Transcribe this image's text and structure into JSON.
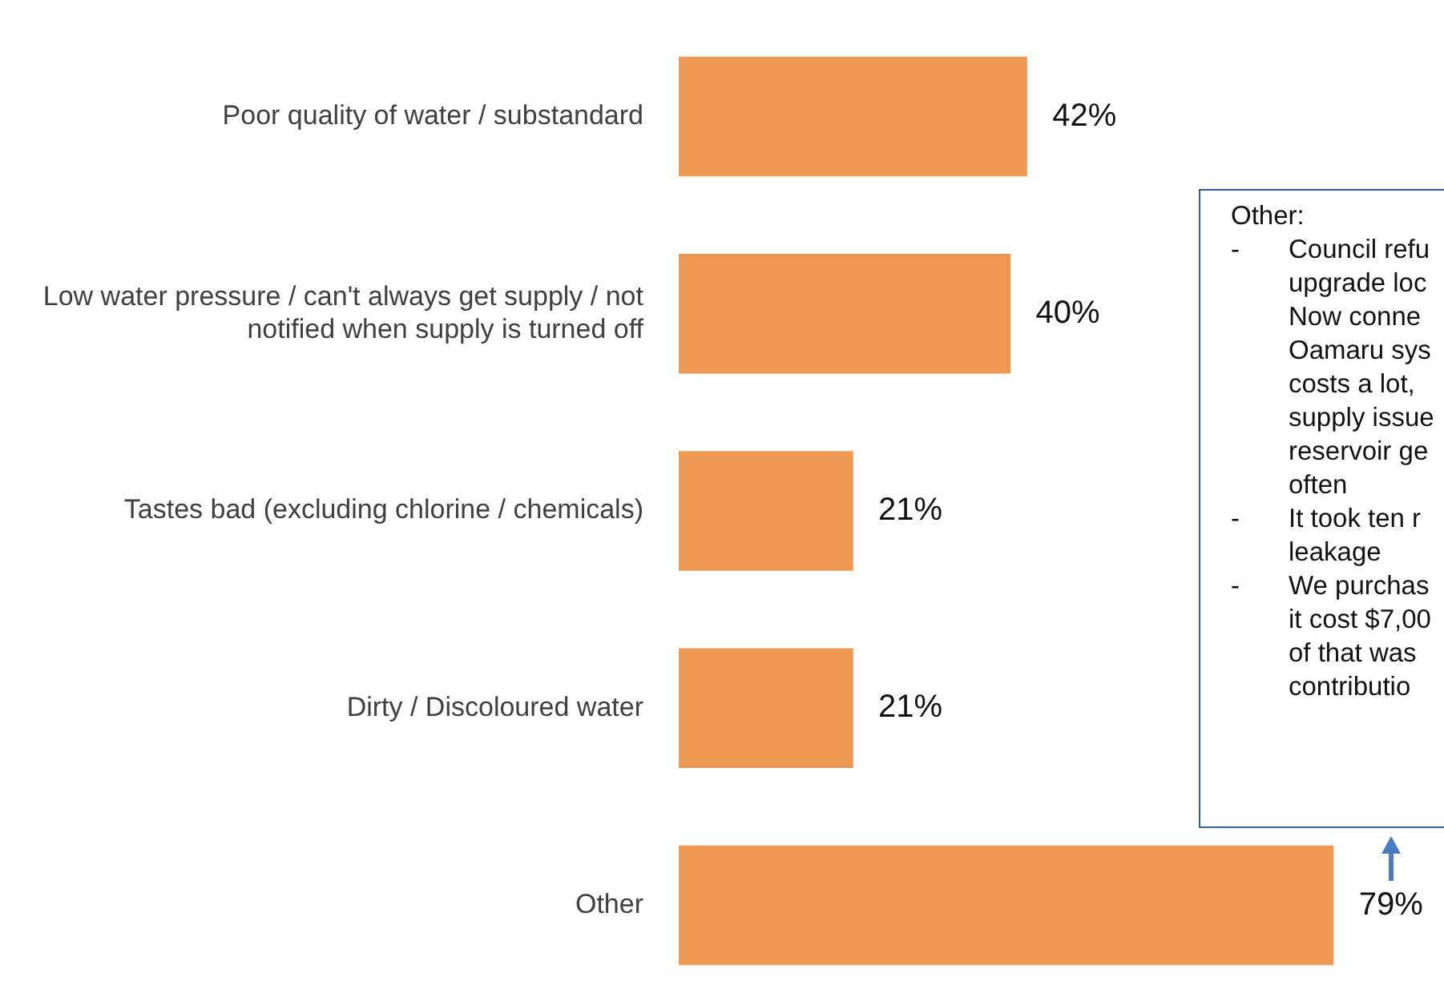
{
  "chart_data": {
    "type": "bar",
    "orientation": "horizontal",
    "categories": [
      "Poor quality of water / substandard",
      "Low water pressure / can't always get supply / not notified when supply is turned off",
      "Tastes bad (excluding chlorine / chemicals)",
      "Dirty / Discoloured water",
      "Other"
    ],
    "values": [
      42,
      40,
      21,
      21,
      79
    ],
    "color": "#ed9953",
    "value_labels": [
      "42%",
      "40%",
      "21%",
      "21%",
      "79%"
    ],
    "tick_labels": "y",
    "legend": false,
    "annotations": [
      "Other:\n-\tCouncil refu\n\tupgrade loc\n\tNow conne\n\tOamaru sys\n\tcosts a lot,\n\tsupply issue\n\treservoir ge\n\toften\n-\tIt took ten r\n\tleakage\n-\tWe purchas\n\tit cost $7,00\n\tof that was\n\tcontributio"
    ]
  }
}
